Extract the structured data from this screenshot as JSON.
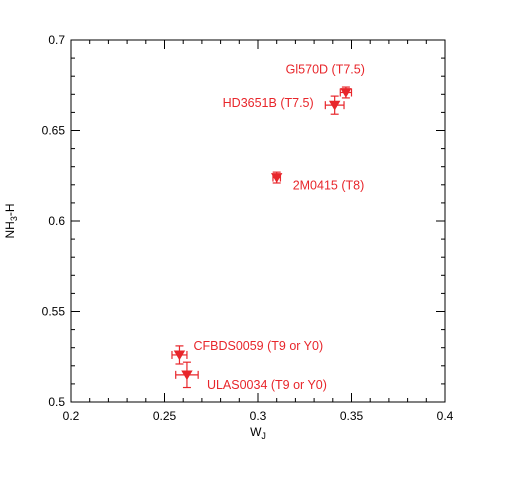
{
  "chart_data": {
    "type": "scatter",
    "title": "",
    "xlabel": {
      "main": "W",
      "sub": "J"
    },
    "ylabel": {
      "pre": "NH",
      "sub": "3",
      "post": "-H"
    },
    "xlim": [
      0.2,
      0.4
    ],
    "ylim": [
      0.5,
      0.7
    ],
    "grid": false,
    "legend": "none",
    "x_ticks": [
      0.2,
      0.25,
      0.3,
      0.35,
      0.4
    ],
    "x_tick_labels": [
      "0.2",
      "0.25",
      "0.3",
      "0.35",
      "0.4"
    ],
    "y_ticks": [
      0.5,
      0.55,
      0.6,
      0.65,
      0.7
    ],
    "y_tick_labels": [
      "0.5",
      "0.55",
      "0.6",
      "0.65",
      "0.7"
    ],
    "marker": "inverted-triangle",
    "color": "#e8262b",
    "points": [
      {
        "label": "Gl570D (T7.5)",
        "x": 0.347,
        "y": 0.671,
        "xerr": 0.003,
        "yerr": 0.003,
        "label_anchor": "above-left"
      },
      {
        "label": "HD3651B (T7.5)",
        "x": 0.341,
        "y": 0.664,
        "xerr": 0.005,
        "yerr": 0.005,
        "label_anchor": "left"
      },
      {
        "label": "2M0415 (T8)",
        "x": 0.31,
        "y": 0.624,
        "xerr": 0.002,
        "yerr": 0.003,
        "label_anchor": "right"
      },
      {
        "label": "CFBDS0059 (T9 or Y0)",
        "x": 0.258,
        "y": 0.526,
        "xerr": 0.004,
        "yerr": 0.005,
        "label_anchor": "right"
      },
      {
        "label": "ULAS0034 (T9 or Y0)",
        "x": 0.262,
        "y": 0.515,
        "xerr": 0.006,
        "yerr": 0.007,
        "label_anchor": "right"
      }
    ]
  }
}
